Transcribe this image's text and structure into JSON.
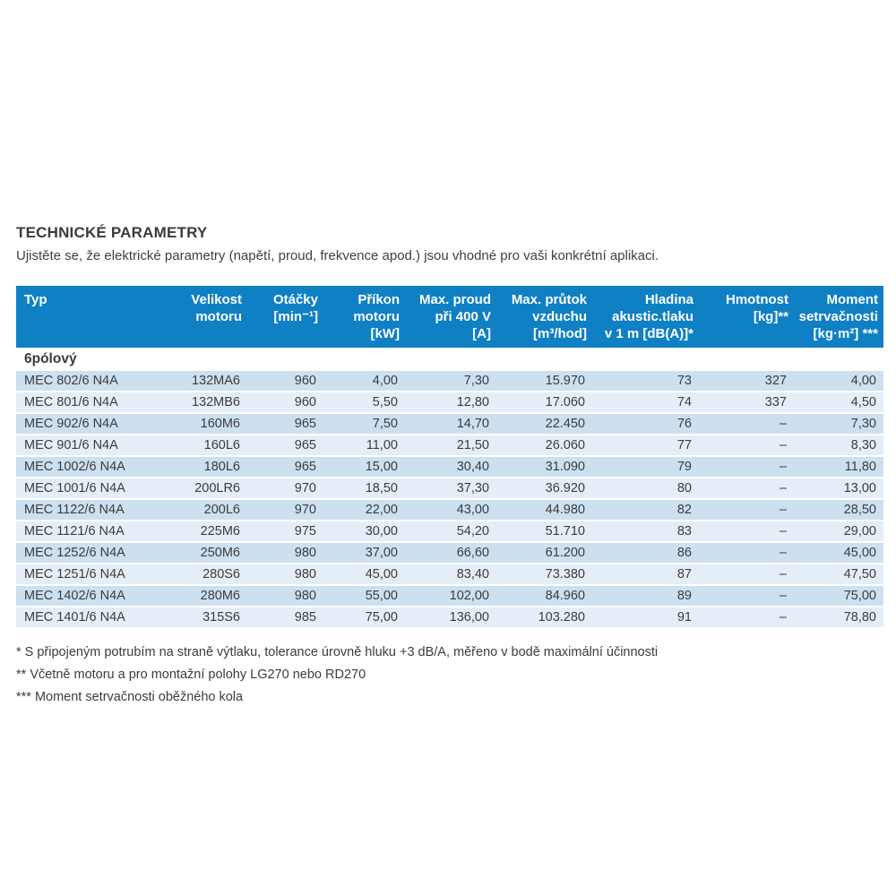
{
  "page": {
    "title": "TECHNICKÉ PARAMETRY",
    "subtitle": "Ujistěte se, že elektrické parametry (napětí, proud, frekvence apod.) jsou vhodné pro vaši konkrétní aplikaci."
  },
  "colors": {
    "header_bg": "#0f80c4",
    "header_text": "#ffffff",
    "row_dark": "#cce0f0",
    "row_light": "#e5eef7",
    "body_text": "#3c3c3c"
  },
  "table": {
    "section_label": "6pólový",
    "headers": [
      {
        "lines": [
          "Typ"
        ],
        "align": "left"
      },
      {
        "lines": [
          "Velikost",
          "motoru"
        ]
      },
      {
        "lines": [
          "Otáčky",
          "[min⁻¹]"
        ]
      },
      {
        "lines": [
          "Příkon",
          "motoru",
          "[kW]"
        ]
      },
      {
        "lines": [
          "Max. proud",
          "při 400 V",
          "[A]"
        ]
      },
      {
        "lines": [
          "Max. průtok",
          "vzduchu",
          "[m³/hod]"
        ]
      },
      {
        "lines": [
          "Hladina",
          "akustic.tlaku",
          "v 1 m [dB(A)]*"
        ]
      },
      {
        "lines": [
          "Hmotnost",
          "[kg]**"
        ]
      },
      {
        "lines": [
          "Moment",
          "setrvačnosti",
          "[kg·m²] ***"
        ]
      }
    ],
    "rows": [
      [
        "MEC 802/6 N4A",
        "132MA6",
        "960",
        "4,00",
        "7,30",
        "15.970",
        "73",
        "327",
        "4,00"
      ],
      [
        "MEC 801/6 N4A",
        "132MB6",
        "960",
        "5,50",
        "12,80",
        "17.060",
        "74",
        "337",
        "4,50"
      ],
      [
        "MEC 902/6 N4A",
        "160M6",
        "965",
        "7,50",
        "14,70",
        "22.450",
        "76",
        "–",
        "7,30"
      ],
      [
        "MEC 901/6 N4A",
        "160L6",
        "965",
        "11,00",
        "21,50",
        "26.060",
        "77",
        "–",
        "8,30"
      ],
      [
        "MEC 1002/6 N4A",
        "180L6",
        "965",
        "15,00",
        "30,40",
        "31.090",
        "79",
        "–",
        "11,80"
      ],
      [
        "MEC 1001/6 N4A",
        "200LR6",
        "970",
        "18,50",
        "37,30",
        "36.920",
        "80",
        "–",
        "13,00"
      ],
      [
        "MEC 1122/6 N4A",
        "200L6",
        "970",
        "22,00",
        "43,00",
        "44.980",
        "82",
        "–",
        "28,50"
      ],
      [
        "MEC 1121/6 N4A",
        "225M6",
        "975",
        "30,00",
        "54,20",
        "51.710",
        "83",
        "–",
        "29,00"
      ],
      [
        "MEC 1252/6 N4A",
        "250M6",
        "980",
        "37,00",
        "66,60",
        "61.200",
        "86",
        "–",
        "45,00"
      ],
      [
        "MEC 1251/6 N4A",
        "280S6",
        "980",
        "45,00",
        "83,40",
        "73.380",
        "87",
        "–",
        "47,50"
      ],
      [
        "MEC 1402/6 N4A",
        "280M6",
        "980",
        "55,00",
        "102,00",
        "84.960",
        "89",
        "–",
        "75,00"
      ],
      [
        "MEC 1401/6 N4A",
        "315S6",
        "985",
        "75,00",
        "136,00",
        "103.280",
        "91",
        "–",
        "78,80"
      ]
    ]
  },
  "footnotes": [
    "* S připojeným potrubím na straně výtlaku, tolerance úrovně hluku +3 dB/A, měřeno v bodě maximální účinnosti",
    "** Včetně motoru a pro montažní polohy LG270 nebo RD270",
    "*** Moment setrvačnosti oběžného kola"
  ]
}
